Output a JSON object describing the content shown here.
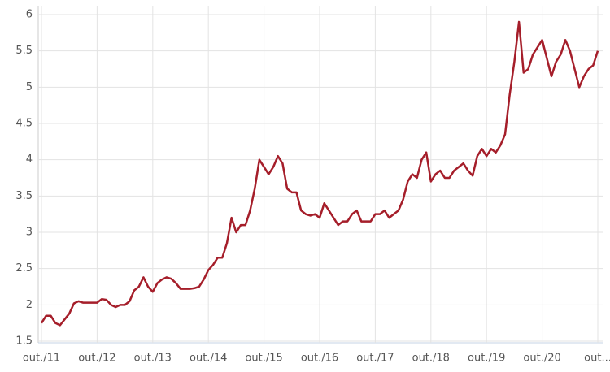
{
  "chart_data": {
    "type": "line",
    "x": [
      "2011-10",
      "2011-11",
      "2011-12",
      "2012-01",
      "2012-02",
      "2012-03",
      "2012-04",
      "2012-05",
      "2012-06",
      "2012-07",
      "2012-08",
      "2012-09",
      "2012-10",
      "2012-11",
      "2012-12",
      "2013-01",
      "2013-02",
      "2013-03",
      "2013-04",
      "2013-05",
      "2013-06",
      "2013-07",
      "2013-08",
      "2013-09",
      "2013-10",
      "2013-11",
      "2013-12",
      "2014-01",
      "2014-02",
      "2014-03",
      "2014-04",
      "2014-05",
      "2014-06",
      "2014-07",
      "2014-08",
      "2014-09",
      "2014-10",
      "2014-11",
      "2014-12",
      "2015-01",
      "2015-02",
      "2015-03",
      "2015-04",
      "2015-05",
      "2015-06",
      "2015-07",
      "2015-08",
      "2015-09",
      "2015-10",
      "2015-11",
      "2015-12",
      "2016-01",
      "2016-02",
      "2016-03",
      "2016-04",
      "2016-05",
      "2016-06",
      "2016-07",
      "2016-08",
      "2016-09",
      "2016-10",
      "2016-11",
      "2016-12",
      "2017-01",
      "2017-02",
      "2017-03",
      "2017-04",
      "2017-05",
      "2017-06",
      "2017-07",
      "2017-08",
      "2017-09",
      "2017-10",
      "2017-11",
      "2017-12",
      "2018-01",
      "2018-02",
      "2018-03",
      "2018-04",
      "2018-05",
      "2018-06",
      "2018-07",
      "2018-08",
      "2018-09",
      "2018-10",
      "2018-11",
      "2018-12",
      "2019-01",
      "2019-02",
      "2019-03",
      "2019-04",
      "2019-05",
      "2019-06",
      "2019-07",
      "2019-08",
      "2019-09",
      "2019-10",
      "2019-11",
      "2019-12",
      "2020-01",
      "2020-02",
      "2020-03",
      "2020-04",
      "2020-05",
      "2020-06",
      "2020-07",
      "2020-08",
      "2020-09",
      "2020-10",
      "2020-11",
      "2020-12",
      "2021-01",
      "2021-02",
      "2021-03",
      "2021-04",
      "2021-05",
      "2021-06",
      "2021-07",
      "2021-08",
      "2021-09",
      "2021-10"
    ],
    "values": [
      1.75,
      1.85,
      1.85,
      1.75,
      1.72,
      1.8,
      1.88,
      2.02,
      2.05,
      2.03,
      2.03,
      2.03,
      2.03,
      2.08,
      2.07,
      2.0,
      1.97,
      2.0,
      2.0,
      2.05,
      2.2,
      2.25,
      2.38,
      2.25,
      2.18,
      2.3,
      2.35,
      2.38,
      2.36,
      2.3,
      2.22,
      2.22,
      2.22,
      2.23,
      2.25,
      2.35,
      2.48,
      2.55,
      2.65,
      2.65,
      2.85,
      3.2,
      3.0,
      3.1,
      3.1,
      3.3,
      3.6,
      4.0,
      3.9,
      3.8,
      3.9,
      4.05,
      3.95,
      3.6,
      3.55,
      3.55,
      3.3,
      3.25,
      3.23,
      3.25,
      3.2,
      3.4,
      3.3,
      3.2,
      3.1,
      3.15,
      3.15,
      3.25,
      3.3,
      3.15,
      3.15,
      3.15,
      3.25,
      3.25,
      3.3,
      3.2,
      3.25,
      3.3,
      3.45,
      3.7,
      3.8,
      3.75,
      4.0,
      4.1,
      3.7,
      3.8,
      3.85,
      3.75,
      3.75,
      3.85,
      3.9,
      3.95,
      3.85,
      3.78,
      4.05,
      4.15,
      4.05,
      4.15,
      4.1,
      4.2,
      4.35,
      4.9,
      5.35,
      5.9,
      5.2,
      5.25,
      5.45,
      5.55,
      5.65,
      5.4,
      5.15,
      5.35,
      5.45,
      5.65,
      5.5,
      5.25,
      5.0,
      5.15,
      5.25,
      5.3,
      5.5
    ],
    "color": "#a51e2a",
    "xlim": [
      "2011-10",
      "2021-10"
    ],
    "xticks": [
      {
        "value": "2011-10",
        "label": "out./11"
      },
      {
        "value": "2012-10",
        "label": "out./12"
      },
      {
        "value": "2013-10",
        "label": "out./13"
      },
      {
        "value": "2014-10",
        "label": "out./14"
      },
      {
        "value": "2015-10",
        "label": "out./15"
      },
      {
        "value": "2016-10",
        "label": "out./16"
      },
      {
        "value": "2017-10",
        "label": "out./17"
      },
      {
        "value": "2018-10",
        "label": "out./18"
      },
      {
        "value": "2019-10",
        "label": "out./19"
      },
      {
        "value": "2020-10",
        "label": "out./20"
      },
      {
        "value": "2021-10",
        "label": "out..."
      }
    ],
    "ylim": [
      1.5,
      6
    ],
    "yticks": [
      1.5,
      2,
      2.5,
      3,
      3.5,
      4,
      4.5,
      5,
      5.5,
      6
    ],
    "grid": true
  }
}
